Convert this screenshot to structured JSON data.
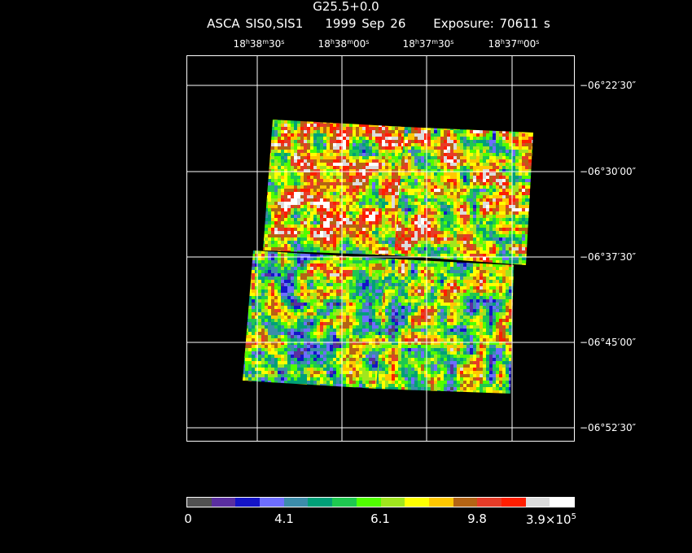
{
  "header": {
    "title": "G25.5+0.0",
    "instrument": "ASCA SIS0,SIS1",
    "date": "1999 Sep 26",
    "exposure": "Exposure: 70611 s"
  },
  "ra_axis": {
    "ticks": [
      {
        "h": "18",
        "m": "38",
        "s": "30"
      },
      {
        "h": "18",
        "m": "38",
        "s": "00"
      },
      {
        "h": "18",
        "m": "37",
        "s": "30"
      },
      {
        "h": "18",
        "m": "37",
        "s": "00"
      }
    ]
  },
  "dec_axis": {
    "ticks": [
      "−06°22′30″",
      "−06°30′00″",
      "−06°37′30″",
      "−06°45′00″",
      "−06°52′30″"
    ]
  },
  "colorbar": {
    "colors": [
      "#505050",
      "#5a2ea0",
      "#1414c8",
      "#6e6eff",
      "#3c8caa",
      "#00a078",
      "#1ec850",
      "#50ff00",
      "#a0e61e",
      "#ffff00",
      "#ffc800",
      "#b46414",
      "#e63c28",
      "#ff1e00",
      "#dcdcdc",
      "#ffffff"
    ],
    "labels": [
      "0",
      "4.1",
      "6.1",
      "9.8",
      "3.9×10"
    ],
    "exponent": "5"
  }
}
